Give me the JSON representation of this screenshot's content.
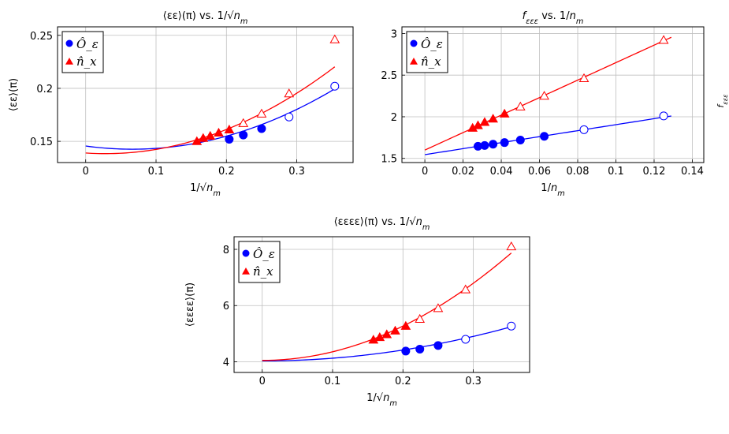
{
  "colors": {
    "blue": "#0000ff",
    "red": "#ff0000",
    "grid": "#bfbfbf"
  },
  "side_label": "f_{εεε}",
  "chart_data": [
    {
      "id": "ee",
      "type": "line",
      "title": "⟨εε⟩(π) vs. 1/√n_m",
      "xlabel": "1/√n_m",
      "ylabel": "⟨εε⟩(π)",
      "xlim": [
        -0.04,
        0.38
      ],
      "ylim": [
        0.13,
        0.258
      ],
      "xticks": [
        0,
        0.1,
        0.2,
        0.3
      ],
      "xtick_labels": [
        "0",
        "0.1",
        "0.2",
        "0.3"
      ],
      "yticks": [
        0.15,
        0.2,
        0.25
      ],
      "ytick_labels": [
        "0.15",
        "0.2",
        "0.25"
      ],
      "grid": true,
      "legend": {
        "placement": "top-left",
        "entries": [
          "Ô_ε",
          "n̂_x"
        ]
      },
      "series": [
        {
          "name": "Ô_ε",
          "color": "blue",
          "filled": {
            "x": [
              0.204,
              0.224,
              0.25
            ],
            "y": [
              0.152,
              0.156,
              0.162
            ],
            "marker": "circle"
          },
          "open": {
            "x": [
              0.289,
              0.354
            ],
            "y": [
              0.173,
              0.202
            ],
            "marker": "circle"
          },
          "fit": {
            "x_range": [
              0,
              0.354
            ],
            "coeffs": [
              0.1456,
              -0.091,
              0.687
            ]
          }
        },
        {
          "name": "n̂_x",
          "color": "red",
          "filled": {
            "x": [
              0.158,
              0.167,
              0.177,
              0.189,
              0.204
            ],
            "y": [
              0.15,
              0.153,
              0.155,
              0.158,
              0.161
            ],
            "marker": "triangle"
          },
          "open": {
            "x": [
              0.224,
              0.25,
              0.289,
              0.354
            ],
            "y": [
              0.167,
              0.176,
              0.195,
              0.246
            ],
            "marker": "triangle"
          },
          "fit": {
            "x_range": [
              0,
              0.354
            ],
            "coeffs": [
              0.139,
              -0.043,
              0.77
            ]
          }
        }
      ]
    },
    {
      "id": "eee",
      "type": "line",
      "title": "f_{εεε} vs. 1/n_m",
      "xlabel": "1/n_m",
      "ylabel": "",
      "xlim": [
        -0.012,
        0.146
      ],
      "ylim": [
        1.45,
        3.08
      ],
      "xticks": [
        0,
        0.02,
        0.04,
        0.06,
        0.08,
        0.1,
        0.12,
        0.14
      ],
      "xtick_labels": [
        "0",
        "0.02",
        "0.04",
        "0.06",
        "0.08",
        "0.1",
        "0.12",
        "0.14"
      ],
      "yticks": [
        1.5,
        2,
        2.5,
        3
      ],
      "ytick_labels": [
        "1.5",
        "2",
        "2.5",
        "3"
      ],
      "grid": true,
      "legend": {
        "placement": "top-left",
        "entries": [
          "Ô_ε",
          "n̂_x"
        ]
      },
      "series": [
        {
          "name": "Ô_ε",
          "color": "blue",
          "filled": {
            "x": [
              0.0278,
              0.0313,
              0.0357,
              0.0417,
              0.05,
              0.0625
            ],
            "y": [
              1.645,
              1.655,
              1.67,
              1.69,
              1.72,
              1.765
            ],
            "marker": "circle"
          },
          "open": {
            "x": [
              0.0833,
              0.125
            ],
            "y": [
              1.845,
              2.01
            ],
            "marker": "circle"
          },
          "fit": {
            "x_range": [
              0,
              0.129
            ],
            "coeffs": [
              1.545,
              3.6,
              0
            ]
          }
        },
        {
          "name": "n̂_x",
          "color": "red",
          "filled": {
            "x": [
              0.025,
              0.0278,
              0.0313,
              0.0357,
              0.0417
            ],
            "y": [
              1.865,
              1.895,
              1.935,
              1.975,
              2.035
            ],
            "marker": "triangle"
          },
          "open": {
            "x": [
              0.05,
              0.0625,
              0.0833,
              0.125
            ],
            "y": [
              2.12,
              2.25,
              2.46,
              2.92
            ],
            "marker": "triangle"
          },
          "fit": {
            "x_range": [
              0,
              0.129
            ],
            "coeffs": [
              1.6,
              10.5,
              0
            ]
          }
        }
      ]
    },
    {
      "id": "eeee",
      "type": "line",
      "title": "⟨εεεε⟩(π) vs. 1/√n_m",
      "xlabel": "1/√n_m",
      "ylabel": "⟨εεεε⟩(π)",
      "xlim": [
        -0.04,
        0.38
      ],
      "ylim": [
        3.62,
        8.45
      ],
      "xticks": [
        0,
        0.1,
        0.2,
        0.3
      ],
      "xtick_labels": [
        "0",
        "0.1",
        "0.2",
        "0.3"
      ],
      "yticks": [
        4,
        6,
        8
      ],
      "ytick_labels": [
        "4",
        "6",
        "8"
      ],
      "grid": true,
      "legend": {
        "placement": "top-left",
        "entries": [
          "Ô_ε",
          "n̂_x"
        ]
      },
      "series": [
        {
          "name": "Ô_ε",
          "color": "blue",
          "filled": {
            "x": [
              0.204,
              0.224,
              0.25
            ],
            "y": [
              4.38,
              4.45,
              4.58
            ],
            "marker": "circle"
          },
          "open": {
            "x": [
              0.289,
              0.354
            ],
            "y": [
              4.8,
              5.27
            ],
            "marker": "circle"
          },
          "fit": {
            "x_range": [
              0,
              0.354
            ],
            "coeffs": [
              4.03,
              0,
              9.7
            ]
          }
        },
        {
          "name": "n̂_x",
          "color": "red",
          "filled": {
            "x": [
              0.158,
              0.167,
              0.177,
              0.189,
              0.204
            ],
            "y": [
              4.78,
              4.87,
              4.97,
              5.1,
              5.27
            ],
            "marker": "triangle"
          },
          "open": {
            "x": [
              0.224,
              0.25,
              0.289,
              0.354
            ],
            "y": [
              5.52,
              5.9,
              6.57,
              8.1
            ],
            "marker": "triangle"
          },
          "fit": {
            "x_range": [
              0,
              0.354
            ],
            "coeffs": [
              4.05,
              0,
              30.5
            ]
          }
        }
      ]
    }
  ]
}
